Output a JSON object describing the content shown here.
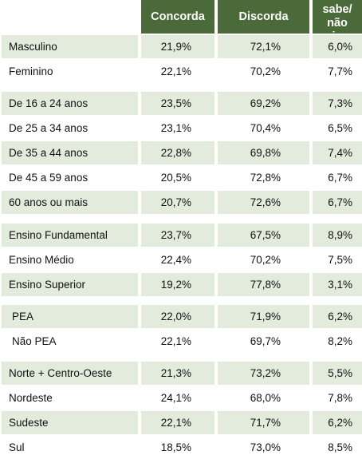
{
  "header": {
    "col1": "Concorda",
    "col2": "Discorda",
    "col3_line1": "Não sabe/",
    "col3_line2": "não opinou"
  },
  "rows": [
    {
      "label": "Masculino",
      "concorda": "21,9%",
      "discorda": "72,1%",
      "nao_sabe": "6,0%"
    },
    {
      "label": "Feminino",
      "concorda": "22,1%",
      "discorda": "70,2%",
      "nao_sabe": "7,7%"
    },
    {
      "label": "De 16 a 24 anos",
      "concorda": "23,5%",
      "discorda": "69,2%",
      "nao_sabe": "7,3%"
    },
    {
      "label": "De 25 a 34 anos",
      "concorda": "23,1%",
      "discorda": "70,4%",
      "nao_sabe": "6,5%"
    },
    {
      "label": "De 35 a 44 anos",
      "concorda": "22,8%",
      "discorda": "69,8%",
      "nao_sabe": "7,4%"
    },
    {
      "label": "De 45 a 59 anos",
      "concorda": "20,5%",
      "discorda": "72,8%",
      "nao_sabe": "6,7%"
    },
    {
      "label": "60 anos ou mais",
      "concorda": "20,7%",
      "discorda": "72,6%",
      "nao_sabe": "6,7%"
    },
    {
      "label": "Ensino Fundamental",
      "concorda": "23,7%",
      "discorda": "67,5%",
      "nao_sabe": "8,9%"
    },
    {
      "label": "Ensino Médio",
      "concorda": "22,4%",
      "discorda": "70,2%",
      "nao_sabe": "7,5%"
    },
    {
      "label": "Ensino Superior",
      "concorda": "19,2%",
      "discorda": "77,8%",
      "nao_sabe": "3,1%"
    },
    {
      "label": "PEA",
      "concorda": "22,0%",
      "discorda": "71,9%",
      "nao_sabe": "6,2%"
    },
    {
      "label": "Não PEA",
      "concorda": "22,1%",
      "discorda": "69,7%",
      "nao_sabe": "8,2%"
    },
    {
      "label": "Norte + Centro-Oeste",
      "concorda": "21,3%",
      "discorda": "73,2%",
      "nao_sabe": "5,5%"
    },
    {
      "label": "Nordeste",
      "concorda": "24,1%",
      "discorda": "68,0%",
      "nao_sabe": "7,8%"
    },
    {
      "label": "Sudeste",
      "concorda": "22,1%",
      "discorda": "71,7%",
      "nao_sabe": "6,2%"
    },
    {
      "label": "Sul",
      "concorda": "18,5%",
      "discorda": "73,0%",
      "nao_sabe": "8,5%"
    }
  ]
}
